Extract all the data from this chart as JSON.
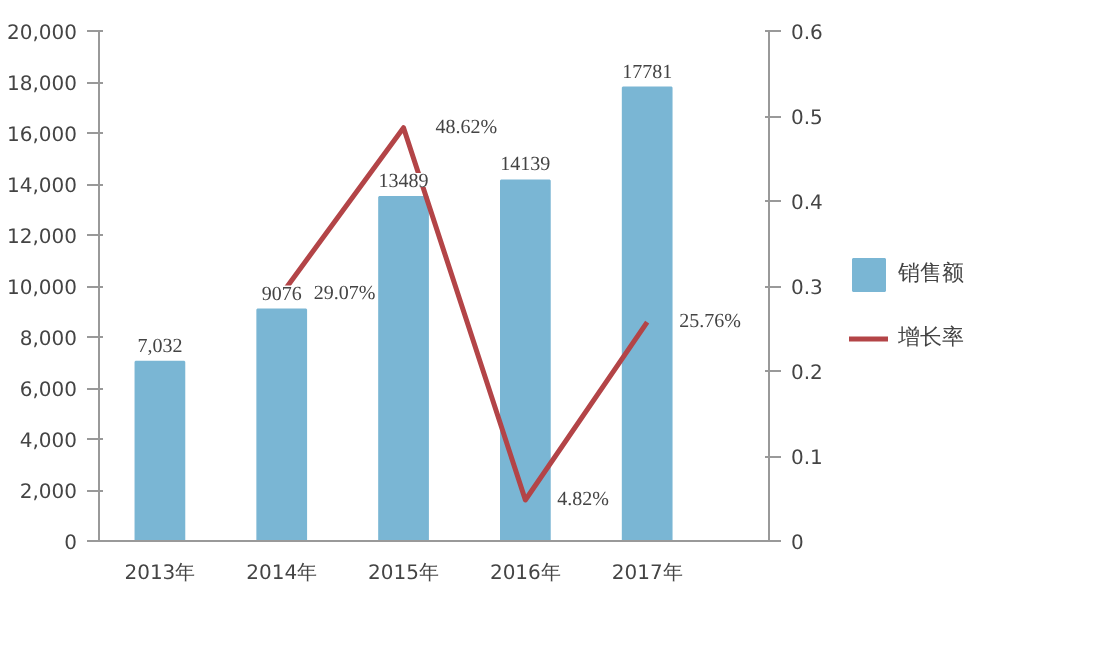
{
  "chart_data": {
    "type": "bar",
    "categories": [
      "2013年",
      "2014年",
      "2015年",
      "2016年",
      "2017年"
    ],
    "series": [
      {
        "name": "销售额",
        "color": "#7ab6d4",
        "values": [
          7032,
          9076,
          13489,
          14139,
          17781
        ],
        "value_labels": [
          "7,032",
          "9076",
          "13489",
          "14139",
          "17781"
        ]
      },
      {
        "type": "line",
        "name": "增长率",
        "color": "#b34447",
        "axis": "y2",
        "values": [
          null,
          0.2907,
          0.4862,
          0.0482,
          0.2576
        ],
        "value_labels": [
          null,
          "29.07%",
          "48.62%",
          "4.82%",
          "25.76%"
        ]
      }
    ],
    "ylim": [
      0,
      20000
    ],
    "yticks": [
      0,
      {
        "value": 2000,
        "label": "2,000"
      },
      {
        "value": 4000,
        "label": "4,000"
      },
      {
        "value": 6000,
        "label": "6,000"
      },
      {
        "value": 8000,
        "label": "8,000"
      },
      {
        "value": 10000,
        "label": "10,000"
      },
      {
        "value": 12000,
        "label": "12,000"
      },
      {
        "value": 14000,
        "label": "14,000"
      },
      {
        "value": 16000,
        "label": "16,000"
      },
      {
        "value": 18000,
        "label": "18,000"
      },
      {
        "value": 20000,
        "label": "20,000"
      }
    ],
    "y2lim": [
      0,
      0.6
    ],
    "y2ticks": [
      0,
      0.1,
      0.2,
      0.3,
      0.4,
      0.5,
      0.6
    ],
    "legend": "right"
  }
}
